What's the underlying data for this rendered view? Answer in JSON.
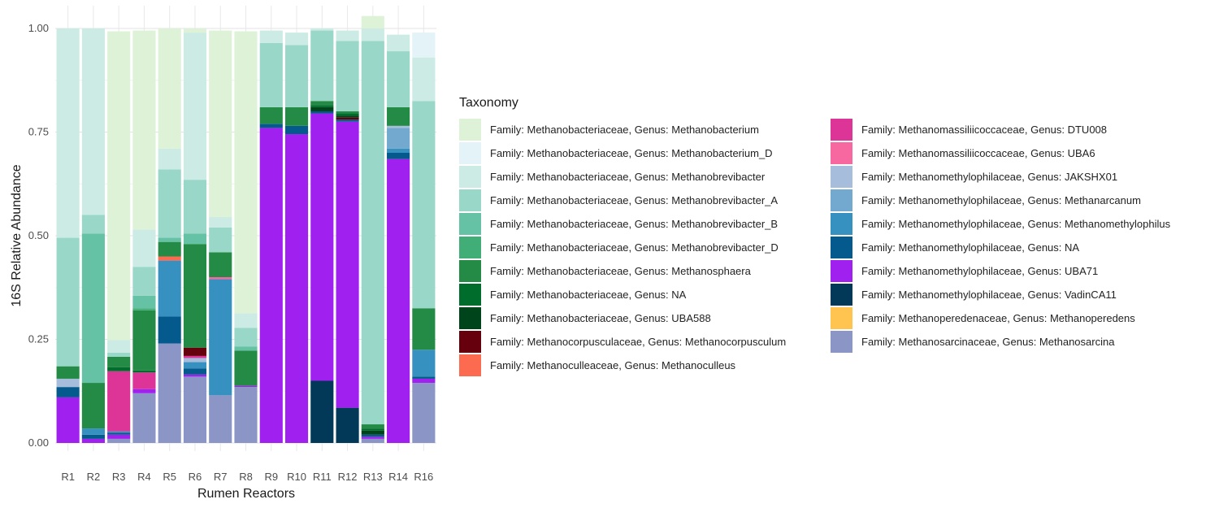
{
  "legend": {
    "title": "Taxonomy",
    "items": [
      {
        "label": "Family: Methanobacteriaceae, Genus: Methanobacterium",
        "color": "#DEF2D8"
      },
      {
        "label": "Family: Methanobacteriaceae, Genus: Methanobacterium_D",
        "color": "#E4F3F8"
      },
      {
        "label": "Family: Methanobacteriaceae, Genus: Methanobrevibacter",
        "color": "#CBEBE4"
      },
      {
        "label": "Family: Methanobacteriaceae, Genus: Methanobrevibacter_A",
        "color": "#99D8C8"
      },
      {
        "label": "Family: Methanobacteriaceae, Genus: Methanobrevibacter_B",
        "color": "#66C2A5"
      },
      {
        "label": "Family: Methanobacteriaceae, Genus: Methanobrevibacter_D",
        "color": "#42AE77"
      },
      {
        "label": "Family: Methanobacteriaceae, Genus: Methanosphaera",
        "color": "#238B45"
      },
      {
        "label": "Family: Methanobacteriaceae, Genus: NA",
        "color": "#006D2C"
      },
      {
        "label": "Family: Methanobacteriaceae, Genus: UBA588",
        "color": "#00441B"
      },
      {
        "label": "Family: Methanocorpusculaceae, Genus: Methanocorpusculum",
        "color": "#67000D"
      },
      {
        "label": "Family: Methanoculleaceae, Genus: Methanoculleus",
        "color": "#FC6B4F"
      },
      {
        "label": "Family: Methanomassiliicoccaceae, Genus: DTU008",
        "color": "#DD3497"
      },
      {
        "label": "Family: Methanomassiliicoccaceae, Genus: UBA6",
        "color": "#F768A1"
      },
      {
        "label": "Family: Methanomethylophilaceae, Genus: JAKSHX01",
        "color": "#A6BDDB"
      },
      {
        "label": "Family: Methanomethylophilaceae, Genus: Methanarcanum",
        "color": "#74A9CF"
      },
      {
        "label": "Family: Methanomethylophilaceae, Genus: Methanomethylophilus",
        "color": "#3690C0"
      },
      {
        "label": "Family: Methanomethylophilaceae, Genus: NA",
        "color": "#045A8D"
      },
      {
        "label": "Family: Methanomethylophilaceae, Genus: UBA71",
        "color": "#A020F0"
      },
      {
        "label": "Family: Methanomethylophilaceae, Genus: VadinCA11",
        "color": "#023858"
      },
      {
        "label": "Family: Methanoperedenaceae, Genus: Methanoperedens",
        "color": "#FEC44F"
      },
      {
        "label": "Family: Methanosarcinaceae, Genus: Methanosarcina",
        "color": "#8C96C6"
      }
    ]
  },
  "chart_data": {
    "type": "bar",
    "stacked": true,
    "xlabel": "Rumen Reactors",
    "ylabel": "16S Relative Abundance",
    "ylim": [
      0,
      1
    ],
    "yticks": [
      "0.00",
      "0.25",
      "0.50",
      "0.75",
      "1.00"
    ],
    "grid": true,
    "legend_position": "right",
    "categories": [
      "R1",
      "R2",
      "R3",
      "R4",
      "R5",
      "R6",
      "R7",
      "R8",
      "R9",
      "R10",
      "R11",
      "R12",
      "R13",
      "R14",
      "R16"
    ],
    "series": [
      {
        "name": "Family: Methanosarcinaceae, Genus: Methanosarcina",
        "color": "#8C96C6",
        "values": [
          0,
          0,
          0.01,
          0.12,
          0.24,
          0.16,
          0.115,
          0.135,
          0,
          0,
          0,
          0,
          0.01,
          0,
          0.145
        ]
      },
      {
        "name": "Family: Methanoperedenaceae, Genus: Methanoperedens",
        "color": "#FEC44F",
        "values": [
          0,
          0,
          0,
          0,
          0,
          0,
          0,
          0,
          0,
          0,
          0,
          0,
          0,
          0,
          0
        ]
      },
      {
        "name": "Family: Methanomethylophilaceae, Genus: VadinCA11",
        "color": "#023858",
        "values": [
          0,
          0,
          0,
          0,
          0,
          0,
          0,
          0,
          0,
          0,
          0.15,
          0.085,
          0,
          0,
          0
        ]
      },
      {
        "name": "Family: Methanomethylophilaceae, Genus: UBA71",
        "color": "#A020F0",
        "values": [
          0.11,
          0.01,
          0.01,
          0.01,
          0,
          0.005,
          0,
          0.003,
          0.76,
          0.745,
          0.645,
          0.69,
          0.005,
          0.685,
          0.01
        ]
      },
      {
        "name": "Family: Methanomethylophilaceae, Genus: NA",
        "color": "#045A8D",
        "values": [
          0.025,
          0.01,
          0.005,
          0,
          0.065,
          0.015,
          0,
          0,
          0.01,
          0.02,
          0.005,
          0.005,
          0.005,
          0.015,
          0.005
        ]
      },
      {
        "name": "Family: Methanomethylophilaceae, Genus: Methanomethylophilus",
        "color": "#3690C0",
        "values": [
          0,
          0.015,
          0.003,
          0,
          0.135,
          0.015,
          0.28,
          0,
          0,
          0,
          0,
          0,
          0,
          0.01,
          0.065
        ]
      },
      {
        "name": "Family: Methanomethylophilaceae, Genus: Methanarcanum",
        "color": "#74A9CF",
        "values": [
          0,
          0,
          0,
          0,
          0,
          0,
          0,
          0,
          0,
          0,
          0,
          0,
          0,
          0.05,
          0
        ]
      },
      {
        "name": "Family: Methanomethylophilaceae, Genus: JAKSHX01",
        "color": "#A6BDDB",
        "values": [
          0.02,
          0,
          0,
          0,
          0,
          0.01,
          0,
          0,
          0,
          0,
          0,
          0,
          0,
          0.005,
          0
        ]
      },
      {
        "name": "Family: Methanomassiliicoccaceae, Genus: UBA6",
        "color": "#F768A1",
        "values": [
          0,
          0,
          0,
          0,
          0,
          0,
          0.005,
          0,
          0,
          0,
          0,
          0,
          0,
          0,
          0
        ]
      },
      {
        "name": "Family: Methanomassiliicoccaceae, Genus: DTU008",
        "color": "#DD3497",
        "values": [
          0,
          0,
          0.145,
          0.04,
          0,
          0.005,
          0,
          0,
          0,
          0,
          0,
          0,
          0,
          0,
          0
        ]
      },
      {
        "name": "Family: Methanoculleaceae, Genus: Methanoculleus",
        "color": "#FC6B4F",
        "values": [
          0,
          0,
          0,
          0,
          0.01,
          0,
          0,
          0,
          0,
          0,
          0,
          0,
          0,
          0,
          0
        ]
      },
      {
        "name": "Family: Methanocorpusculaceae, Genus: Methanocorpusculum",
        "color": "#67000D",
        "values": [
          0,
          0,
          0,
          0,
          0,
          0.02,
          0,
          0,
          0,
          0,
          0,
          0.005,
          0,
          0,
          0
        ]
      },
      {
        "name": "Family: Methanobacteriaceae, Genus: UBA588",
        "color": "#00441B",
        "values": [
          0,
          0,
          0,
          0,
          0,
          0,
          0,
          0,
          0,
          0,
          0.01,
          0.005,
          0.01,
          0,
          0
        ]
      },
      {
        "name": "Family: Methanobacteriaceae, Genus: NA",
        "color": "#006D2C",
        "values": [
          0,
          0,
          0.01,
          0.005,
          0,
          0,
          0,
          0,
          0,
          0,
          0.005,
          0.005,
          0.005,
          0,
          0
        ]
      },
      {
        "name": "Family: Methanobacteriaceae, Genus: Methanosphaera",
        "color": "#238B45",
        "values": [
          0.03,
          0.11,
          0.025,
          0.145,
          0.035,
          0.25,
          0.06,
          0.085,
          0.04,
          0.045,
          0.01,
          0.005,
          0.01,
          0.045,
          0.1
        ]
      },
      {
        "name": "Family: Methanobacteriaceae, Genus: Methanobrevibacter_D",
        "color": "#42AE77",
        "values": [
          0,
          0,
          0,
          0.005,
          0,
          0,
          0,
          0,
          0,
          0,
          0,
          0,
          0,
          0,
          0
        ]
      },
      {
        "name": "Family: Methanobacteriaceae, Genus: Methanobrevibacter_B",
        "color": "#66C2A5",
        "values": [
          0,
          0.36,
          0,
          0.03,
          0.01,
          0.025,
          0,
          0.01,
          0,
          0,
          0,
          0,
          0,
          0,
          0
        ]
      },
      {
        "name": "Family: Methanobacteriaceae, Genus: Methanobrevibacter_A",
        "color": "#99D8C8",
        "values": [
          0.31,
          0.045,
          0.01,
          0.07,
          0.165,
          0.13,
          0.06,
          0.045,
          0.155,
          0.15,
          0.17,
          0.17,
          0.925,
          0.135,
          0.5
        ]
      },
      {
        "name": "Family: Methanobacteriaceae, Genus: Methanobrevibacter",
        "color": "#CBEBE4",
        "values": [
          0.505,
          0.45,
          0.03,
          0.09,
          0.05,
          0.355,
          0.025,
          0.035,
          0.03,
          0.03,
          0.005,
          0.025,
          0.03,
          0.04,
          0.105
        ]
      },
      {
        "name": "Family: Methanobacteriaceae, Genus: Methanobacterium_D",
        "color": "#E4F3F8",
        "values": [
          0,
          0,
          0,
          0,
          0,
          0,
          0,
          0,
          0,
          0,
          0,
          0,
          0,
          0,
          0.06
        ]
      },
      {
        "name": "Family: Methanobacteriaceae, Genus: Methanobacterium",
        "color": "#DEF2D8",
        "values": [
          0,
          0,
          0.745,
          0.48,
          0.29,
          0.01,
          0.45,
          0.68,
          0,
          0,
          0,
          0,
          0.03,
          0,
          0
        ]
      }
    ]
  }
}
